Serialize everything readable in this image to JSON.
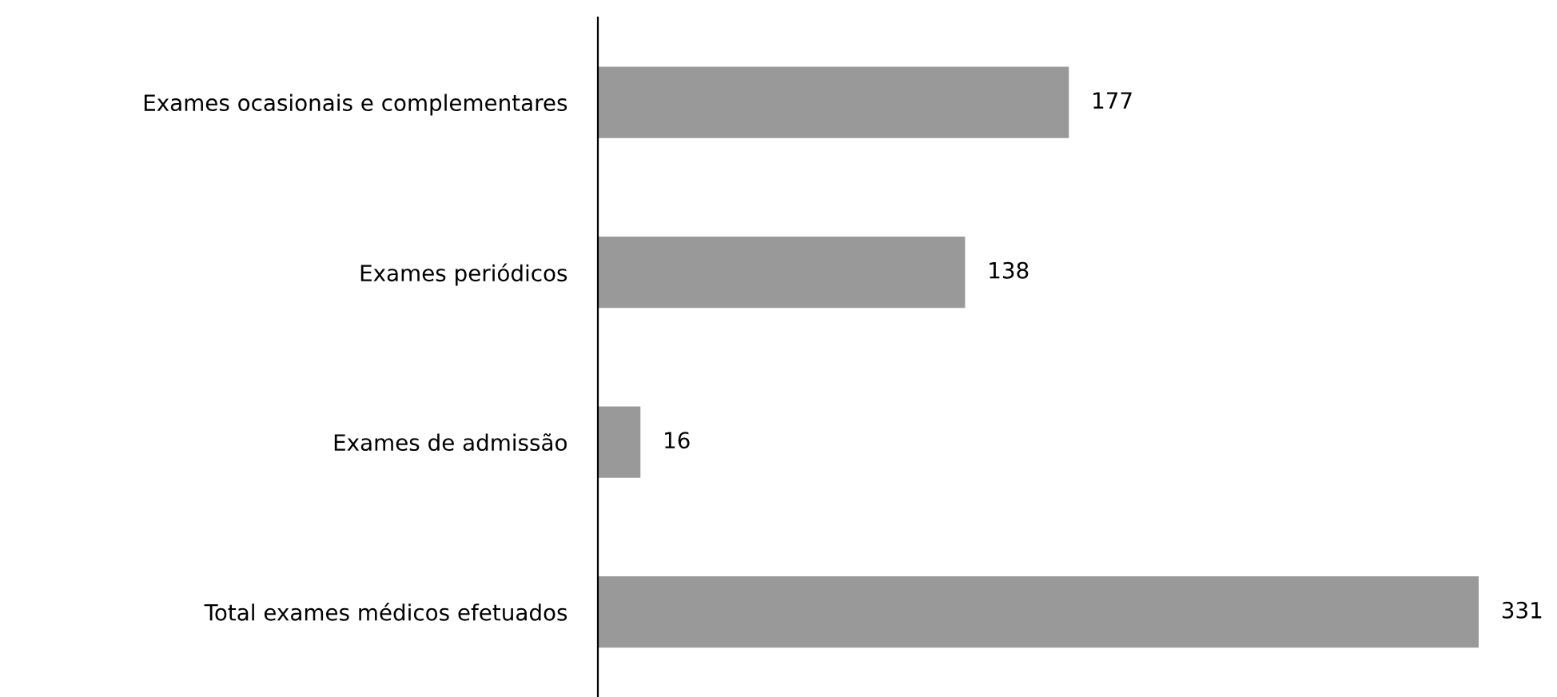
{
  "chart_data": {
    "type": "bar",
    "orientation": "horizontal",
    "categories": [
      "Exames ocasionais e complementares",
      "Exames periódicos",
      "Exames de admissão",
      "Total exames médicos efetuados"
    ],
    "values": [
      177,
      138,
      16,
      331
    ],
    "color": "#999999",
    "data_labels": true,
    "tick_labels": "y",
    "grid": false,
    "legend": false
  }
}
